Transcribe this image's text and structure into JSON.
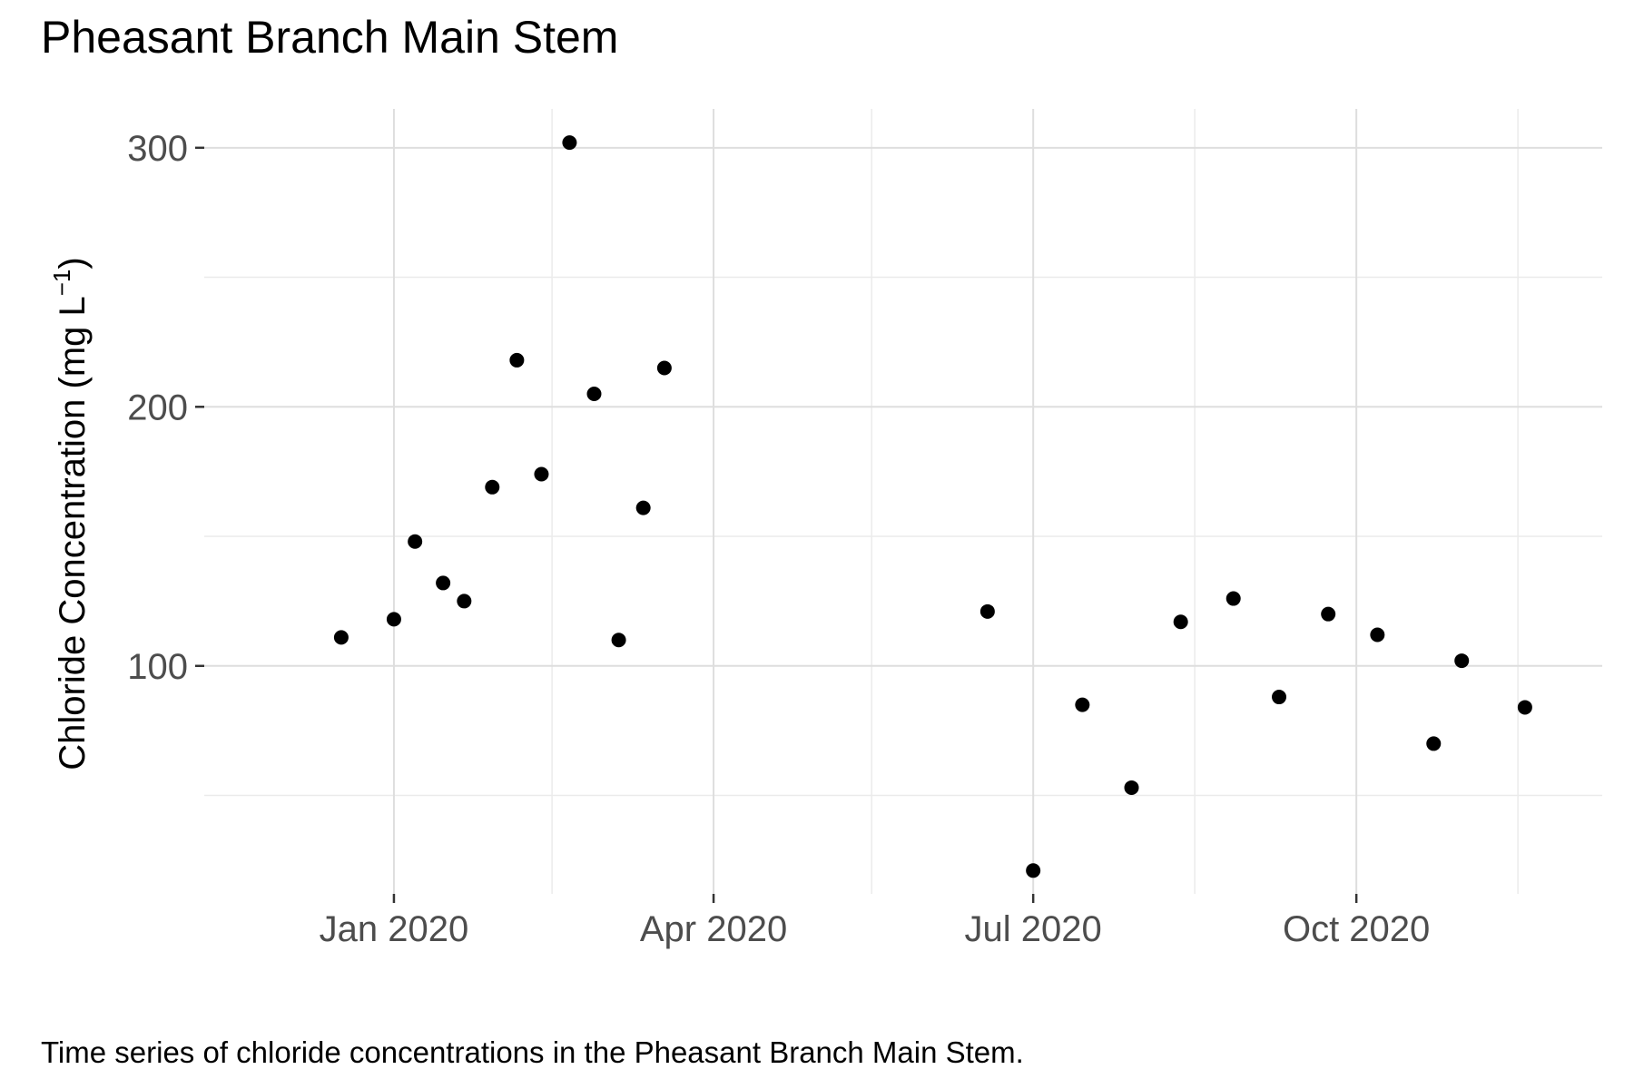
{
  "title": "Pheasant Branch Main Stem",
  "caption": "Time series of chloride concentrations in the Pheasant Branch Main Stem.",
  "chart_data": {
    "type": "scatter",
    "title": "Pheasant Branch Main Stem",
    "xlabel": "",
    "ylabel": {
      "main": "Chloride Concentration (mg L",
      "superscript": "−1",
      "close": ")"
    },
    "x_type": "date",
    "xlim": [
      "2019-11-08",
      "2020-12-10"
    ],
    "ylim": [
      12,
      315
    ],
    "x_ticks": [
      {
        "date": "2020-01-01",
        "label": "Jan 2020"
      },
      {
        "date": "2020-04-01",
        "label": "Apr 2020"
      },
      {
        "date": "2020-07-01",
        "label": "Jul 2020"
      },
      {
        "date": "2020-10-01",
        "label": "Oct 2020"
      }
    ],
    "x_minor_gridlines": [
      "2020-02-15",
      "2020-05-16",
      "2020-08-16",
      "2020-11-16"
    ],
    "y_ticks": [
      100,
      200,
      300
    ],
    "y_minor_gridlines": [
      50,
      150,
      250
    ],
    "grid": true,
    "point_color": "#000000",
    "points": [
      {
        "x": "2019-12-17",
        "y": 111
      },
      {
        "x": "2020-01-01",
        "y": 118
      },
      {
        "x": "2020-01-07",
        "y": 148
      },
      {
        "x": "2020-01-15",
        "y": 132
      },
      {
        "x": "2020-01-21",
        "y": 125
      },
      {
        "x": "2020-01-29",
        "y": 169
      },
      {
        "x": "2020-02-05",
        "y": 218
      },
      {
        "x": "2020-02-12",
        "y": 174
      },
      {
        "x": "2020-02-20",
        "y": 302
      },
      {
        "x": "2020-02-27",
        "y": 205
      },
      {
        "x": "2020-03-05",
        "y": 110
      },
      {
        "x": "2020-03-12",
        "y": 161
      },
      {
        "x": "2020-03-18",
        "y": 215
      },
      {
        "x": "2020-06-18",
        "y": 121
      },
      {
        "x": "2020-07-01",
        "y": 21
      },
      {
        "x": "2020-07-15",
        "y": 85
      },
      {
        "x": "2020-07-29",
        "y": 53
      },
      {
        "x": "2020-08-12",
        "y": 117
      },
      {
        "x": "2020-08-27",
        "y": 126
      },
      {
        "x": "2020-09-09",
        "y": 88
      },
      {
        "x": "2020-09-23",
        "y": 120
      },
      {
        "x": "2020-10-07",
        "y": 112
      },
      {
        "x": "2020-10-23",
        "y": 70
      },
      {
        "x": "2020-10-31",
        "y": 102
      },
      {
        "x": "2020-11-18",
        "y": 84
      }
    ]
  }
}
